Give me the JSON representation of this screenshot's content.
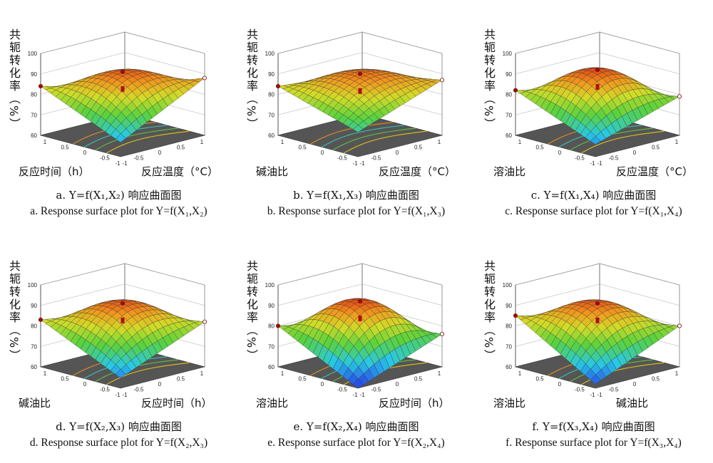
{
  "y_label": "共轭转化率（%）",
  "chart_data": [
    {
      "id": "a",
      "type": "surface",
      "title_cn": "a. Y=f(X₁,X₂) 响应曲面图",
      "title_en": "a. Response surface plot for Y=f(X₁,X₂)",
      "xlabel": "反应时间（h）",
      "zlabel": "反应温度（°C）",
      "ylabel": "共轭转化率（%）",
      "xlim": [
        -1,
        1
      ],
      "zlim": [
        -1,
        1
      ],
      "ylim": [
        60,
        100
      ],
      "yticks": [
        60,
        70,
        80,
        90,
        100
      ],
      "corners": {
        "x-1_z-1": 67,
        "x1_z-1": 88,
        "x-1_z1": 84,
        "x1_z1": 73
      },
      "center": 91
    },
    {
      "id": "b",
      "type": "surface",
      "title_cn": "b. Y=f(X₁,X₃) 响应曲面图",
      "title_en": "b. Response surface plot for Y=f(X₁,X₃)",
      "xlabel": "碱油比",
      "zlabel": "反应温度（°C）",
      "ylabel": "共轭转化率（%）",
      "xlim": [
        -1,
        1
      ],
      "zlim": [
        -1,
        1
      ],
      "ylim": [
        60,
        100
      ],
      "yticks": [
        60,
        70,
        80,
        90,
        100
      ],
      "corners": {
        "x-1_z-1": 72,
        "x1_z-1": 87,
        "x-1_z1": 84,
        "x1_z1": 80
      },
      "center": 90
    },
    {
      "id": "c",
      "type": "surface",
      "title_cn": "c. Y=f(X₁,X₄) 响应曲面图",
      "title_en": "c. Response surface plot for Y=f(X₁,X₄)",
      "xlabel": "溶油比",
      "zlabel": "反应温度（°C）",
      "ylabel": "共轭转化率（%）",
      "xlim": [
        -1,
        1
      ],
      "zlim": [
        -1,
        1
      ],
      "ylim": [
        60,
        100
      ],
      "yticks": [
        60,
        70,
        80,
        90,
        100
      ],
      "corners": {
        "x-1_z-1": 66,
        "x1_z-1": 79,
        "x-1_z1": 82,
        "x1_z1": 72
      },
      "center": 92
    },
    {
      "id": "d",
      "type": "surface",
      "title_cn": "d. Y=f(X₂,X₃) 响应曲面图",
      "title_en": "d. Response surface plot for Y=f(X₂,X₃)",
      "xlabel": "碱油比",
      "zlabel": "反应时间（h）",
      "ylabel": "共轭转化率（%）",
      "xlim": [
        -1,
        1
      ],
      "zlim": [
        -1,
        1
      ],
      "ylim": [
        60,
        100
      ],
      "yticks": [
        60,
        70,
        80,
        90,
        100
      ],
      "corners": {
        "x-1_z-1": 65,
        "x1_z-1": 82,
        "x-1_z1": 83,
        "x1_z1": 76
      },
      "center": 91
    },
    {
      "id": "e",
      "type": "surface",
      "title_cn": "e. Y=f(X₂,X₄) 响应曲面图",
      "title_en": "e. Response surface plot for Y=f(X₂,X₄)",
      "xlabel": "溶油比",
      "zlabel": "反应时间（h）",
      "ylabel": "共轭转化率（%）",
      "xlim": [
        -1,
        1
      ],
      "zlim": [
        -1,
        1
      ],
      "ylim": [
        60,
        100
      ],
      "yticks": [
        60,
        70,
        80,
        90,
        100
      ],
      "corners": {
        "x-1_z-1": 60,
        "x1_z-1": 76,
        "x-1_z1": 80,
        "x1_z1": 72
      },
      "center": 92
    },
    {
      "id": "f",
      "type": "surface",
      "title_cn": "f. Y=f(X₃,X₄) 响应曲面图",
      "title_en": "f. Response surface plot for Y=f(X₃,X₄)",
      "xlabel": "溶油比",
      "zlabel": "碱油比",
      "ylabel": "共轭转化率（%）",
      "xlim": [
        -1,
        1
      ],
      "zlim": [
        -1,
        1
      ],
      "ylim": [
        60,
        100
      ],
      "yticks": [
        60,
        70,
        80,
        90,
        100
      ],
      "corners": {
        "x-1_z-1": 62,
        "x1_z-1": 80,
        "x-1_z1": 85,
        "x1_z1": 74
      },
      "center": 91
    }
  ]
}
